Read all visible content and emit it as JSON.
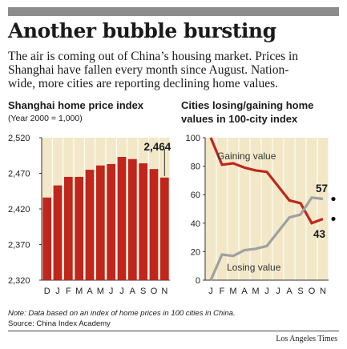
{
  "headline": "Another bubble bursting",
  "lede_lines": [
    "The air is coming out of China’s housing market. Prices in",
    "Shanghai have fallen every month since August. Nation-",
    "wide, more cities are reporting declining home values."
  ],
  "note": "Note: Data based on an index of home prices in 100 cities in China.",
  "source": "Source: China Index Academy",
  "credit": "Los Angeles Times",
  "colors": {
    "bar": "#c0261c",
    "panel_bg": "#f2e8c8",
    "gaining": "#c0261c",
    "losing": "#a0a0a0",
    "topbar": "#8c8c8c"
  },
  "chart_data": [
    {
      "type": "bar",
      "title": "Shanghai home price index",
      "subtitle": "(Year 2000 = 1,000)",
      "categories": [
        "D",
        "J",
        "F",
        "M",
        "A",
        "M",
        "J",
        "J",
        "A",
        "S",
        "O",
        "N"
      ],
      "values": [
        2436,
        2453,
        2465,
        2465,
        2475,
        2481,
        2483,
        2493,
        2490,
        2484,
        2476,
        2464
      ],
      "ylim": [
        2320,
        2520
      ],
      "yticks": [
        "2,320",
        "2,370",
        "2,420",
        "2,470",
        "2,520"
      ],
      "grid": "vertical",
      "annotation": {
        "label": "2,464",
        "category_index": 11
      }
    },
    {
      "type": "line",
      "title": "Cities losing/gaining home",
      "title_line2": "values in 100-city index",
      "categories": [
        "J",
        "F",
        "M",
        "A",
        "M",
        "J",
        "J",
        "A",
        "S",
        "O",
        "N"
      ],
      "ylim": [
        0,
        100
      ],
      "yticks": [
        "0",
        "20",
        "40",
        "60",
        "80",
        "100"
      ],
      "grid": "vertical",
      "series": [
        {
          "name": "Gaining value",
          "values": [
            100,
            81,
            82,
            79,
            77,
            76,
            66,
            56,
            54,
            40,
            43
          ],
          "end_label": "43"
        },
        {
          "name": "Losing value",
          "values": [
            0,
            18,
            17,
            21,
            22,
            24,
            34,
            44,
            46,
            58,
            57
          ],
          "end_label": "57"
        }
      ]
    }
  ]
}
